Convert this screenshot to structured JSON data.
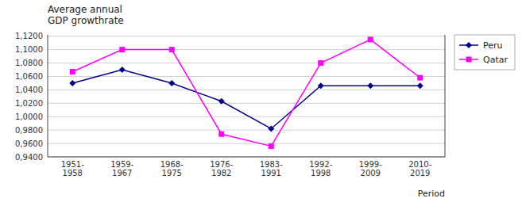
{
  "chart_data": {
    "type": "line",
    "title": "Average annual\nGDP growthrate",
    "x_label": "Period",
    "categories": [
      "1951-\n1958",
      "1959-\n1967",
      "1968-\n1975",
      "1976-\n1982",
      "1983-\n1991",
      "1992-\n1998",
      "1999-\n2009",
      "2010-\n2019"
    ],
    "series": [
      {
        "name": "Peru",
        "color": "#00008B",
        "marker": "diamond",
        "line_style": "solid",
        "values": [
          1.05,
          1.07,
          1.05,
          1.023,
          0.982,
          1.046,
          1.046,
          1.046
        ]
      },
      {
        "name": "Qatar",
        "color": "#FF00FF",
        "marker": "square",
        "line_style": "solid",
        "values": [
          1.067,
          1.1,
          1.1,
          0.974,
          0.956,
          1.08,
          1.115,
          1.058
        ]
      }
    ],
    "ylim": [
      0.94,
      1.122
    ],
    "yticks": [
      {
        "value": 0.94,
        "label": "0,9400"
      },
      {
        "value": 0.96,
        "label": "0,9600"
      },
      {
        "value": 0.98,
        "label": "0,9800"
      },
      {
        "value": 1.0,
        "label": "1,0000"
      },
      {
        "value": 1.02,
        "label": "1,0200"
      },
      {
        "value": 1.04,
        "label": "1,0400"
      },
      {
        "value": 1.06,
        "label": "1,0600"
      },
      {
        "value": 1.08,
        "label": "1,0800"
      },
      {
        "value": 1.1,
        "label": "1,1000"
      },
      {
        "value": 1.12,
        "label": "1,1200"
      }
    ],
    "grid": true,
    "legend": "right"
  }
}
